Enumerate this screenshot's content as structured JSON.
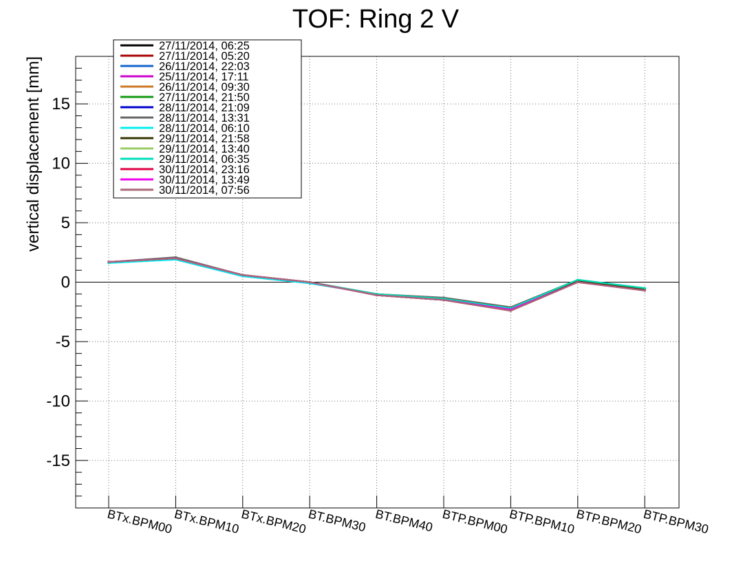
{
  "chart_data": {
    "type": "line",
    "title": "TOF: Ring 2 V",
    "xlabel": "",
    "ylabel": "vertical displacement [mm]",
    "ylim": [
      -19,
      19
    ],
    "yticks": [
      -15,
      -10,
      -5,
      0,
      5,
      10,
      15
    ],
    "grid": true,
    "legend_position": "top-left",
    "categories": [
      "BTx.BPM00",
      "BTx.BPM10",
      "BTx.BPM20",
      "BT.BPM30",
      "BT.BPM40",
      "BTP.BPM00",
      "BTP.BPM10",
      "BTP.BPM20",
      "BTP.BPM30"
    ],
    "series": [
      {
        "name": "27/11/2014, 06:25",
        "color": "#000000",
        "values": [
          1.7,
          2.0,
          0.6,
          0.0,
          -1.1,
          -1.5,
          -2.4,
          0.0,
          -0.7
        ]
      },
      {
        "name": "27/11/2014, 05:20",
        "color": "#aa0000",
        "values": [
          1.7,
          2.0,
          0.6,
          0.0,
          -1.1,
          -1.5,
          -2.4,
          0.0,
          -0.7
        ]
      },
      {
        "name": "26/11/2014, 22:03",
        "color": "#1166cc",
        "values": [
          1.7,
          2.0,
          0.6,
          -0.1,
          -1.0,
          -1.4,
          -2.2,
          0.1,
          -0.6
        ]
      },
      {
        "name": "25/11/2014, 17:11",
        "color": "#cc00cc",
        "values": [
          1.7,
          1.9,
          0.5,
          -0.1,
          -1.0,
          -1.4,
          -2.3,
          0.1,
          -0.6
        ]
      },
      {
        "name": "26/11/2014, 09:30",
        "color": "#cc7722",
        "values": [
          1.7,
          2.0,
          0.6,
          0.0,
          -1.0,
          -1.5,
          -2.3,
          0.0,
          -0.7
        ]
      },
      {
        "name": "27/11/2014, 21:50",
        "color": "#119911",
        "values": [
          1.7,
          2.0,
          0.6,
          0.0,
          -1.0,
          -1.4,
          -2.2,
          0.1,
          -0.6
        ]
      },
      {
        "name": "28/11/2014, 21:09",
        "color": "#0000cc",
        "values": [
          1.7,
          2.0,
          0.6,
          0.0,
          -1.0,
          -1.4,
          -2.3,
          0.1,
          -0.6
        ]
      },
      {
        "name": "28/11/2014, 13:31",
        "color": "#666666",
        "values": [
          1.7,
          2.1,
          0.6,
          0.0,
          -1.0,
          -1.3,
          -2.1,
          0.2,
          -0.5
        ]
      },
      {
        "name": "28/11/2014, 06:10",
        "color": "#00eeee",
        "values": [
          1.6,
          1.9,
          0.5,
          -0.1,
          -1.0,
          -1.4,
          -2.2,
          0.1,
          -0.6
        ]
      },
      {
        "name": "29/11/2014, 21:58",
        "color": "#333300",
        "values": [
          1.7,
          2.0,
          0.6,
          0.0,
          -1.0,
          -1.4,
          -2.2,
          0.1,
          -0.6
        ]
      },
      {
        "name": "29/11/2014, 13:40",
        "color": "#99cc66",
        "values": [
          1.7,
          2.0,
          0.6,
          0.0,
          -1.0,
          -1.4,
          -2.2,
          0.2,
          -0.5
        ]
      },
      {
        "name": "29/11/2014, 06:35",
        "color": "#00ddbb",
        "values": [
          1.7,
          2.0,
          0.6,
          0.0,
          -1.0,
          -1.4,
          -2.2,
          0.2,
          -0.5
        ]
      },
      {
        "name": "30/11/2014, 23:16",
        "color": "#dd0044",
        "values": [
          1.7,
          2.0,
          0.6,
          0.0,
          -1.1,
          -1.5,
          -2.4,
          0.0,
          -0.7
        ]
      },
      {
        "name": "30/11/2014, 13:49",
        "color": "#ee00ee",
        "values": [
          1.7,
          2.0,
          0.6,
          0.0,
          -1.1,
          -1.5,
          -2.3,
          0.0,
          -0.7
        ]
      },
      {
        "name": "30/11/2014, 07:56",
        "color": "#aa6677",
        "values": [
          1.7,
          2.0,
          0.6,
          0.0,
          -1.1,
          -1.5,
          -2.4,
          0.0,
          -0.7
        ]
      }
    ]
  }
}
